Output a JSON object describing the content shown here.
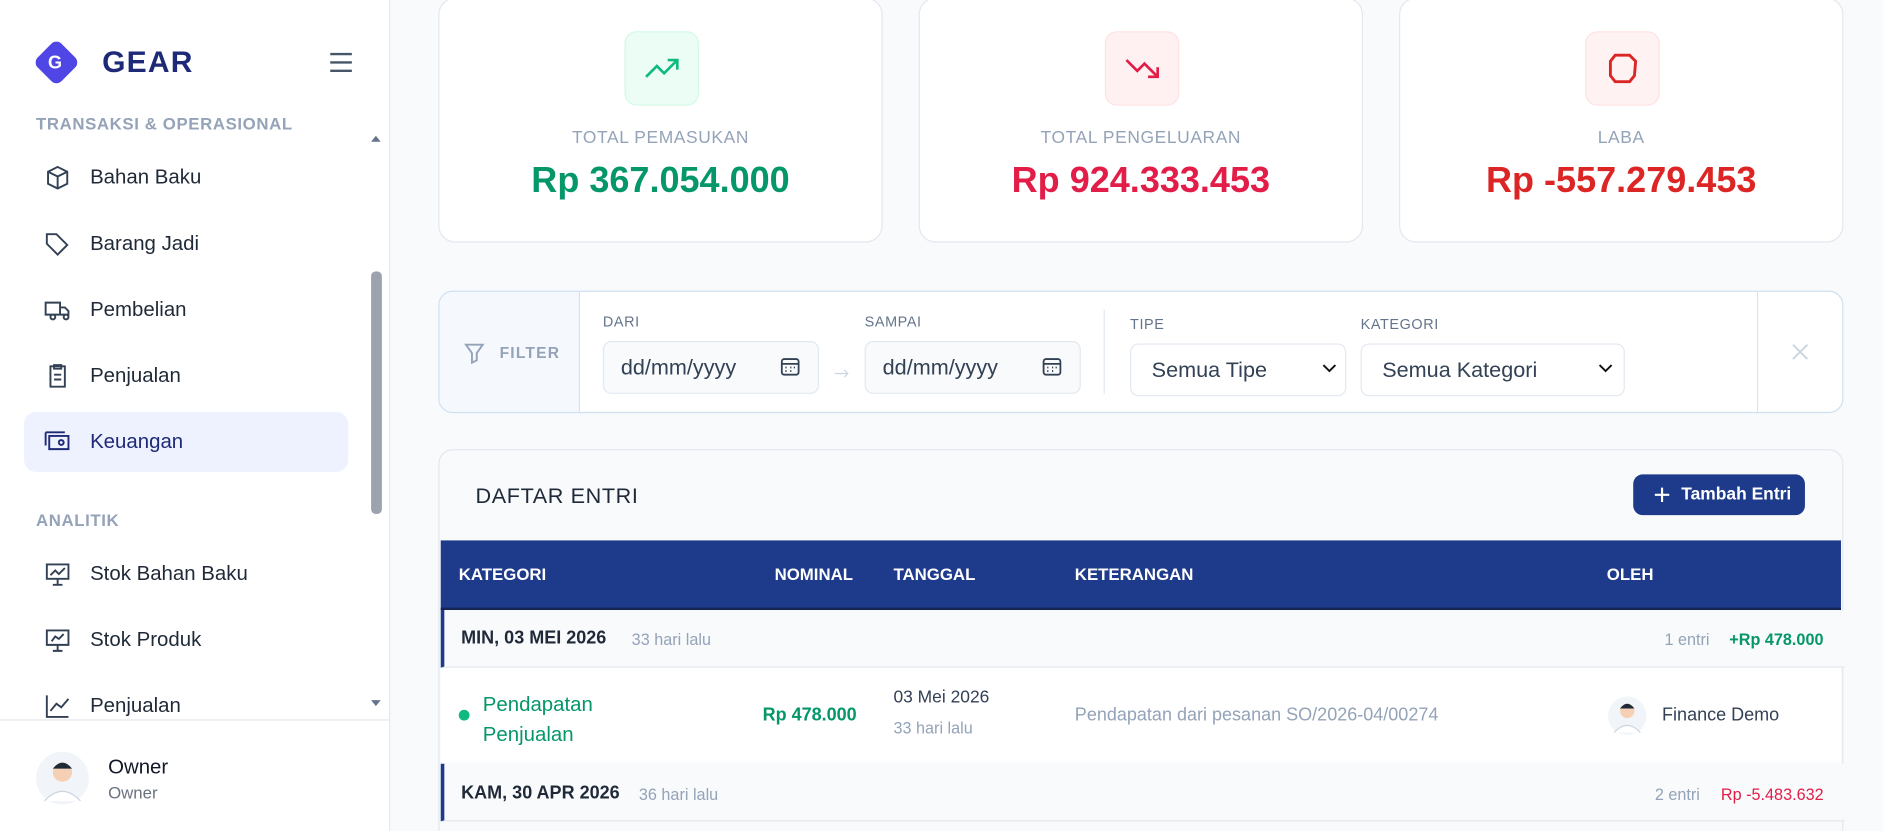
{
  "sidebar": {
    "logo_letter": "G",
    "brand": "GEAR",
    "sections": [
      {
        "title": "TRANSAKSI & OPERASIONAL",
        "items": [
          "Bahan Baku",
          "Barang Jadi",
          "Pembelian",
          "Penjualan",
          "Keuangan"
        ]
      },
      {
        "title": "ANALITIK",
        "items": [
          "Stok Bahan Baku",
          "Stok Produk",
          "Penjualan"
        ]
      }
    ],
    "user": {
      "name": "Owner",
      "role": "Owner"
    }
  },
  "stats": [
    {
      "label": "TOTAL PEMASUKAN",
      "value": "Rp 367.054.000"
    },
    {
      "label": "TOTAL PENGELUARAN",
      "value": "Rp 924.333.453"
    },
    {
      "label": "LABA",
      "value": "Rp -557.279.453"
    }
  ],
  "filter": {
    "label": "FILTER",
    "from_label": "DARI",
    "from_placeholder": "dd/mm/yyyy",
    "to_label": "SAMPAI",
    "to_placeholder": "dd/mm/yyyy",
    "type_label": "TIPE",
    "type_value": "Semua Tipe",
    "category_label": "KATEGORI",
    "category_value": "Semua Kategori"
  },
  "table": {
    "title": "DAFTAR ENTRI",
    "add_button": "Tambah Entri",
    "columns": [
      "KATEGORI",
      "NOMINAL",
      "TANGGAL",
      "KETERANGAN",
      "OLEH"
    ],
    "groups": [
      {
        "date": "MIN, 03 MEI 2026",
        "ago": "33 hari lalu",
        "count": "1 entri",
        "total": "+Rp 478.000",
        "rows": [
          {
            "category": "Pendapatan Penjualan",
            "amount": "Rp 478.000",
            "date": "03 Mei 2026",
            "ago": "33 hari lalu",
            "note": "Pendapatan dari pesanan SO/2026-04/00274",
            "by": "Finance Demo"
          }
        ]
      },
      {
        "date": "KAM, 30 APR 2026",
        "ago": "36 hari lalu",
        "count": "2 entri",
        "total": "Rp -5.483.632",
        "rows": []
      }
    ]
  }
}
